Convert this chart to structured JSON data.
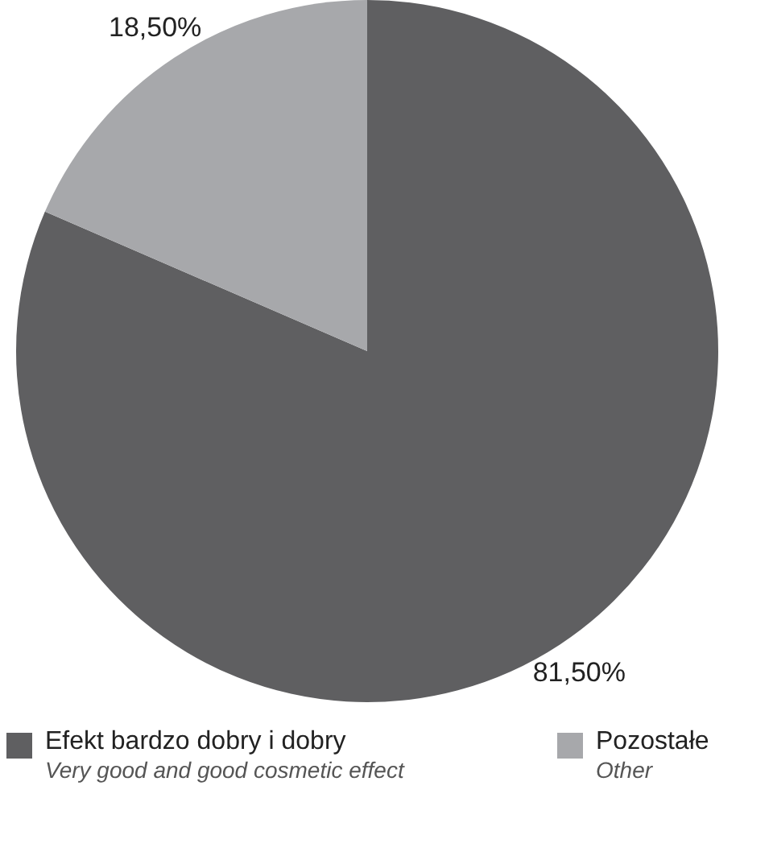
{
  "chart_data": {
    "type": "pie",
    "categories": [
      "Efekt bardzo dobry i dobry\nVery good and good cosmetic effect",
      "Pozostałe\nOther"
    ],
    "values": [
      81.5,
      18.5
    ],
    "colors": [
      "#5f5f61",
      "#a7a8ab"
    ],
    "value_labels": [
      "81,50%",
      "18,50%"
    ],
    "legend": "bottom"
  }
}
